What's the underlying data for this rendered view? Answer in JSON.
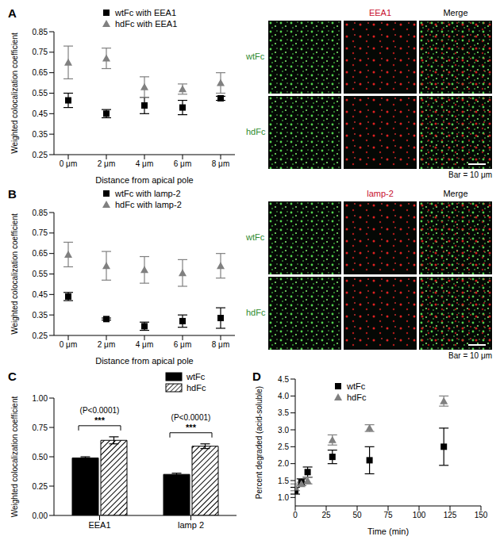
{
  "chart_data": [
    {
      "panel": "A",
      "type": "line",
      "line_style": "none",
      "x_label": "Distance from apical pole",
      "y_label": "Weighted colocalization coefficient",
      "categories": [
        "0 μm",
        "2 μm",
        "4 μm",
        "6 μm",
        "8 μm"
      ],
      "ylim": [
        0.25,
        0.85
      ],
      "yticks": [
        0.25,
        0.35,
        0.45,
        0.55,
        0.65,
        0.75,
        0.85
      ],
      "series": [
        {
          "name": "wtFc with EEA1",
          "color": "#000000",
          "marker": "square",
          "values": [
            0.515,
            0.45,
            0.49,
            0.48,
            0.525
          ],
          "errors": [
            0.035,
            0.02,
            0.04,
            0.035,
            0.01
          ]
        },
        {
          "name": "hdFc with EEA1",
          "color": "#808080",
          "marker": "triangle",
          "values": [
            0.7,
            0.72,
            0.58,
            0.57,
            0.6
          ],
          "errors": [
            0.08,
            0.05,
            0.05,
            0.025,
            0.05
          ]
        }
      ]
    },
    {
      "panel": "B",
      "type": "line",
      "line_style": "none",
      "x_label": "Distance from apical pole",
      "y_label": "Weighted colocalization coefficient",
      "categories": [
        "0 μm",
        "2 μm",
        "4 μm",
        "6 μm",
        "8 μm"
      ],
      "ylim": [
        0.25,
        0.85
      ],
      "yticks": [
        0.25,
        0.35,
        0.45,
        0.55,
        0.65,
        0.75,
        0.85
      ],
      "series": [
        {
          "name": "wtFc with lamp-2",
          "color": "#000000",
          "marker": "square",
          "values": [
            0.44,
            0.33,
            0.295,
            0.32,
            0.335
          ],
          "errors": [
            0.02,
            0.005,
            0.02,
            0.03,
            0.05
          ]
        },
        {
          "name": "hdFc with lamp-2",
          "color": "#808080",
          "marker": "triangle",
          "values": [
            0.645,
            0.59,
            0.57,
            0.555,
            0.59
          ],
          "errors": [
            0.06,
            0.07,
            0.065,
            0.065,
            0.06
          ]
        }
      ]
    },
    {
      "panel": "C",
      "type": "bar",
      "y_label": "Weighted colocalization coefficient",
      "categories": [
        "EEA1",
        "lamp 2"
      ],
      "ylim": [
        0,
        1
      ],
      "yticks": [
        {
          "value": 0,
          "label": "0.00"
        },
        0.25,
        {
          "value": 0.5,
          "label": "0.50"
        },
        0.75,
        {
          "value": 1,
          "label": "1.00"
        }
      ],
      "series": [
        {
          "name": "wtFc",
          "color": "#000000",
          "values": [
            0.49,
            0.35
          ],
          "errors": [
            0.01,
            0.01
          ]
        },
        {
          "name": "hdFc",
          "color": "#000000",
          "values": [
            0.64,
            0.59
          ],
          "errors": [
            0.03,
            0.02
          ]
        }
      ],
      "annotations": [
        {
          "category": "EEA1",
          "p_value": "(P<0.0001)",
          "stars": "***"
        },
        {
          "category": "lamp 2",
          "p_value": "(P<0.0001)",
          "stars": "***"
        }
      ]
    },
    {
      "panel": "D",
      "type": "line",
      "line_style": "none",
      "x_label": "Time (min)",
      "y_label": "Percent degraded (acid-soluble)",
      "x": [
        0,
        5,
        10,
        30,
        60,
        120
      ],
      "xlim": [
        0,
        150
      ],
      "xticks": [
        0,
        25,
        50,
        75,
        100,
        125,
        150
      ],
      "ylim": [
        0.75,
        4.5
      ],
      "yticks": [
        {
          "value": 1,
          "label": "1.0"
        },
        1.5,
        {
          "value": 2,
          "label": "2.0"
        },
        2.5,
        {
          "value": 3,
          "label": "3.0"
        },
        3.5,
        {
          "value": 4,
          "label": "4.0"
        },
        4.5
      ],
      "series": [
        {
          "name": "wtFc",
          "color": "#000000",
          "marker": "square",
          "values": [
            1.2,
            1.45,
            1.75,
            2.2,
            2.1,
            2.5
          ],
          "errors": [
            0.1,
            0.1,
            0.15,
            0.2,
            0.4,
            0.55
          ]
        },
        {
          "name": "hdFc",
          "color": "#808080",
          "marker": "triangle",
          "values": [
            1.3,
            1.4,
            1.5,
            2.7,
            3.05,
            3.85
          ],
          "errors": [
            0.1,
            0.05,
            0.1,
            0.15,
            0.1,
            0.15
          ]
        }
      ]
    }
  ],
  "micrographs": [
    {
      "panel": "A",
      "channel": "EEA1",
      "merge": "Merge",
      "rows": [
        "wtFc",
        "hdFc"
      ],
      "scale_bar": "Bar = 10 μm"
    },
    {
      "panel": "B",
      "channel": "lamp-2",
      "merge": "Merge",
      "rows": [
        "wtFc",
        "hdFc"
      ],
      "scale_bar": "Bar = 10 μm"
    }
  ]
}
